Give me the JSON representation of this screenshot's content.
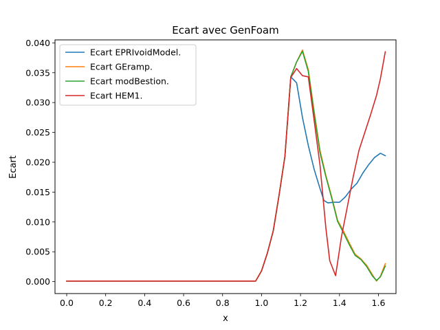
{
  "chart_data": {
    "type": "line",
    "title": "Ecart avec GenFoam",
    "xlabel": "x",
    "ylabel": "Ecart",
    "xlim": [
      -0.06,
      1.69
    ],
    "ylim": [
      -0.002,
      0.0405
    ],
    "xticks": [
      0.0,
      0.2,
      0.4,
      0.6,
      0.8,
      1.0,
      1.2,
      1.4,
      1.6
    ],
    "xtick_labels": [
      "0.0",
      "0.2",
      "0.4",
      "0.6",
      "0.8",
      "1.0",
      "1.2",
      "1.4",
      "1.6"
    ],
    "yticks": [
      0.0,
      0.005,
      0.01,
      0.015,
      0.02,
      0.025,
      0.03,
      0.035,
      0.04
    ],
    "ytick_labels": [
      "0.000",
      "0.005",
      "0.010",
      "0.015",
      "0.020",
      "0.025",
      "0.030",
      "0.035",
      "0.040"
    ],
    "grid": false,
    "legend_position": "upper-left",
    "series": [
      {
        "name": "Ecart EPRIvoidModel.",
        "color": "#1f77b4",
        "x": [
          0.0,
          0.97,
          1.0,
          1.03,
          1.06,
          1.09,
          1.12,
          1.15,
          1.18,
          1.21,
          1.24,
          1.27,
          1.3,
          1.32,
          1.34,
          1.37,
          1.4,
          1.43,
          1.46,
          1.49,
          1.52,
          1.55,
          1.58,
          1.61,
          1.635
        ],
        "y": [
          0.0001,
          0.0001,
          0.0018,
          0.0048,
          0.0085,
          0.0145,
          0.021,
          0.0343,
          0.0333,
          0.0275,
          0.0228,
          0.0188,
          0.0156,
          0.0136,
          0.0132,
          0.0133,
          0.0133,
          0.0142,
          0.0155,
          0.0165,
          0.0182,
          0.0196,
          0.0208,
          0.0215,
          0.0211
        ]
      },
      {
        "name": "Ecart GEramp.",
        "color": "#ff7f0e",
        "x": [
          0.0,
          0.97,
          1.0,
          1.03,
          1.06,
          1.09,
          1.12,
          1.15,
          1.18,
          1.21,
          1.24,
          1.27,
          1.3,
          1.33,
          1.36,
          1.39,
          1.42,
          1.45,
          1.48,
          1.51,
          1.54,
          1.57,
          1.59,
          1.61,
          1.635
        ],
        "y": [
          0.0001,
          0.0001,
          0.0018,
          0.0048,
          0.0085,
          0.0145,
          0.021,
          0.0343,
          0.0368,
          0.0388,
          0.0355,
          0.0285,
          0.022,
          0.0178,
          0.0142,
          0.0103,
          0.0085,
          0.0065,
          0.0046,
          0.0038,
          0.0027,
          0.0011,
          0.0001,
          0.0009,
          0.003
        ]
      },
      {
        "name": "Ecart modBestion.",
        "color": "#2ca02c",
        "x": [
          0.0,
          0.97,
          1.0,
          1.03,
          1.06,
          1.09,
          1.12,
          1.15,
          1.18,
          1.21,
          1.24,
          1.27,
          1.3,
          1.33,
          1.36,
          1.39,
          1.42,
          1.45,
          1.48,
          1.51,
          1.54,
          1.57,
          1.59,
          1.61,
          1.635
        ],
        "y": [
          0.0001,
          0.0001,
          0.0018,
          0.0048,
          0.0085,
          0.0145,
          0.021,
          0.0343,
          0.0368,
          0.0386,
          0.0352,
          0.0282,
          0.0216,
          0.0176,
          0.014,
          0.0101,
          0.0082,
          0.0062,
          0.0044,
          0.0037,
          0.0025,
          0.0009,
          0.0002,
          0.0008,
          0.0026
        ]
      },
      {
        "name": "Ecart HEM1.",
        "color": "#d62728",
        "x": [
          0.0,
          0.97,
          1.0,
          1.03,
          1.06,
          1.09,
          1.12,
          1.15,
          1.18,
          1.21,
          1.24,
          1.27,
          1.3,
          1.33,
          1.35,
          1.38,
          1.41,
          1.44,
          1.47,
          1.5,
          1.53,
          1.56,
          1.59,
          1.61,
          1.635
        ],
        "y": [
          0.0001,
          0.0001,
          0.0018,
          0.0048,
          0.0085,
          0.0145,
          0.021,
          0.0342,
          0.0357,
          0.0345,
          0.0343,
          0.027,
          0.0195,
          0.009,
          0.0035,
          0.001,
          0.0075,
          0.0125,
          0.0175,
          0.022,
          0.025,
          0.028,
          0.0312,
          0.034,
          0.0385
        ]
      }
    ]
  }
}
